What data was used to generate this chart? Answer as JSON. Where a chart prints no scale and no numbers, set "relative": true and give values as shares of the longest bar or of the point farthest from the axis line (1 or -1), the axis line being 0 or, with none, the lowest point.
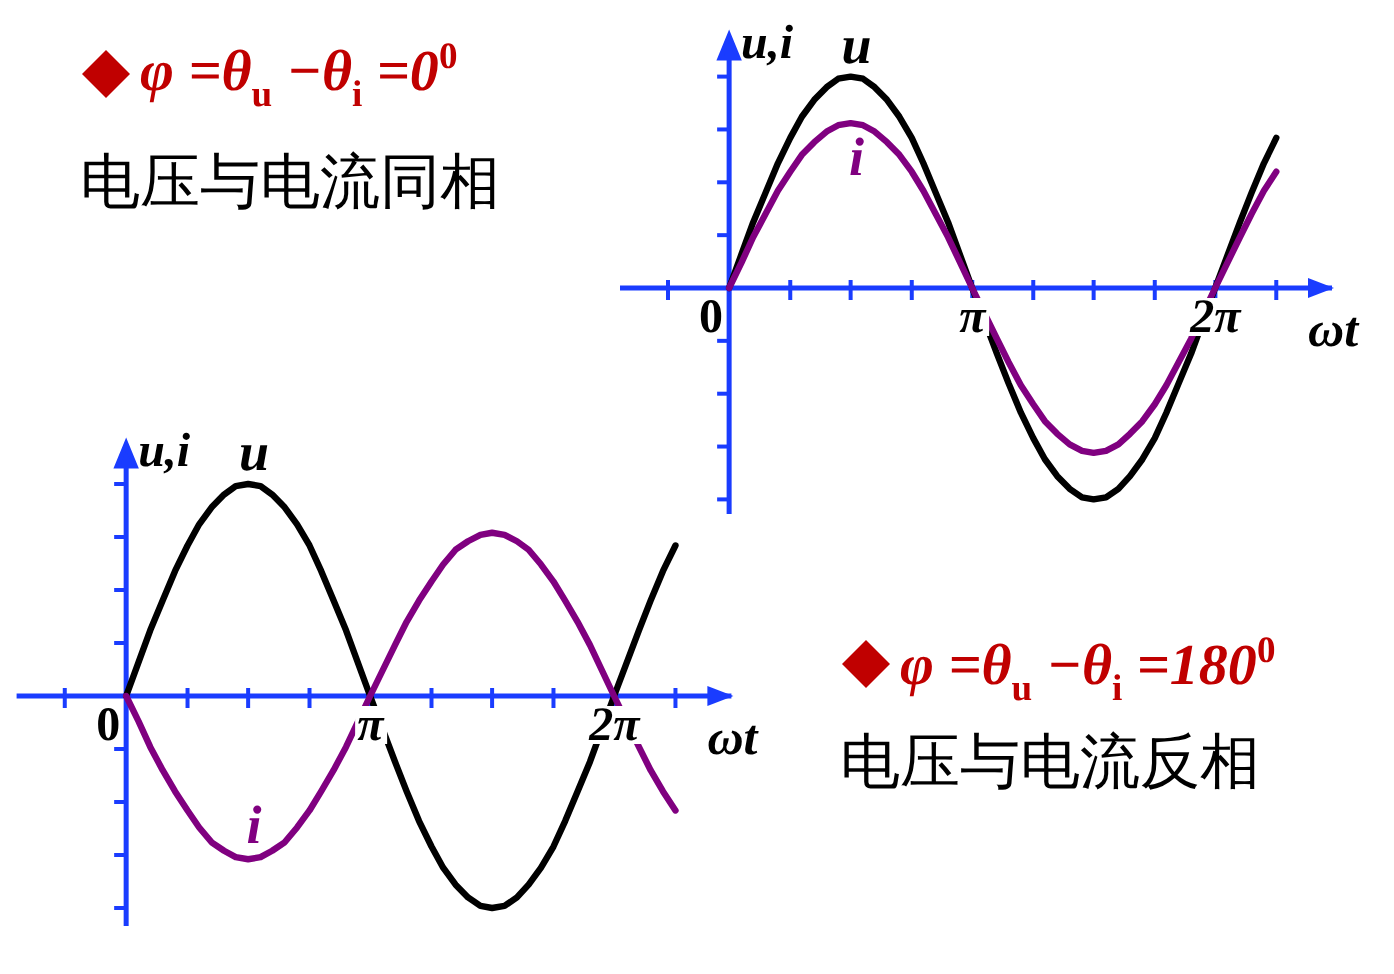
{
  "chart_data": [
    {
      "type": "other",
      "title": "φ =θ$_{u}$ −θ$_{i}$ =0$^{0}$",
      "subtitle": "电压与电流同相"
    },
    {
      "type": "line",
      "xlabel": "ωt",
      "ylabel": "u,i",
      "relative": true,
      "xlim": [
        -1.41,
        7.79
      ],
      "xticks": [
        {
          "value": -0.79,
          "label": null
        },
        0,
        {
          "value": 0.79,
          "label": null
        },
        {
          "value": 1.57,
          "label": null
        },
        {
          "value": 2.36,
          "label": null
        },
        {
          "value": 3.1416,
          "label": "π"
        },
        {
          "value": 3.93,
          "label": null
        },
        {
          "value": 4.71,
          "label": null
        },
        {
          "value": 5.5,
          "label": null
        },
        {
          "value": 6.2832,
          "label": "2π"
        },
        {
          "value": 7.07,
          "label": null
        }
      ],
      "ref_lines": [
        {
          "axis": "x",
          "value": 0,
          "color": "#1a3cff"
        }
      ],
      "x": [
        0,
        0.16,
        0.31,
        0.47,
        0.63,
        0.79,
        0.94,
        1.1,
        1.26,
        1.41,
        1.57,
        1.73,
        1.88,
        2.04,
        2.2,
        2.36,
        2.51,
        2.67,
        2.83,
        3.14,
        3.46,
        3.61,
        3.77,
        3.93,
        4.08,
        4.24,
        4.4,
        4.56,
        4.71,
        4.87,
        5.03,
        5.18,
        5.34,
        5.5,
        5.65,
        5.81,
        5.97,
        6.28,
        6.6,
        6.75,
        6.91,
        7.07
      ],
      "series": [
        {
          "name": "u",
          "color": "#000000",
          "values": [
            0,
            0.16,
            0.31,
            0.45,
            0.59,
            0.71,
            0.81,
            0.89,
            0.95,
            0.99,
            1,
            0.99,
            0.95,
            0.89,
            0.81,
            0.71,
            0.59,
            0.45,
            0.31,
            0,
            -0.31,
            -0.45,
            -0.59,
            -0.71,
            -0.81,
            -0.89,
            -0.95,
            -0.99,
            -1,
            -0.99,
            -0.95,
            -0.89,
            -0.81,
            -0.71,
            -0.59,
            -0.45,
            -0.31,
            0,
            0.31,
            0.45,
            0.59,
            0.71
          ]
        },
        {
          "name": "i",
          "color": "#800080",
          "values": [
            0,
            0.12,
            0.24,
            0.35,
            0.46,
            0.55,
            0.63,
            0.69,
            0.74,
            0.77,
            0.78,
            0.77,
            0.74,
            0.69,
            0.63,
            0.55,
            0.46,
            0.35,
            0.24,
            0,
            -0.24,
            -0.35,
            -0.46,
            -0.55,
            -0.63,
            -0.69,
            -0.74,
            -0.77,
            -0.78,
            -0.77,
            -0.74,
            -0.69,
            -0.63,
            -0.55,
            -0.46,
            -0.35,
            -0.24,
            0,
            0.24,
            0.35,
            0.46,
            0.55
          ]
        }
      ]
    },
    {
      "type": "line",
      "xlabel": "ωt",
      "ylabel": "u,i",
      "relative": true,
      "xlim": [
        -1.41,
        7.79
      ],
      "xticks": [
        {
          "value": -0.79,
          "label": null
        },
        0,
        {
          "value": 0.79,
          "label": null
        },
        {
          "value": 1.57,
          "label": null
        },
        {
          "value": 2.36,
          "label": null
        },
        {
          "value": 3.1416,
          "label": "π"
        },
        {
          "value": 3.93,
          "label": null
        },
        {
          "value": 4.71,
          "label": null
        },
        {
          "value": 5.5,
          "label": null
        },
        {
          "value": 6.2832,
          "label": "2π"
        },
        {
          "value": 7.07,
          "label": null
        }
      ],
      "ref_lines": [
        {
          "axis": "x",
          "value": 0,
          "color": "#1a3cff"
        }
      ],
      "x": [
        0,
        0.16,
        0.31,
        0.47,
        0.63,
        0.79,
        0.94,
        1.1,
        1.26,
        1.41,
        1.57,
        1.73,
        1.88,
        2.04,
        2.2,
        2.36,
        2.51,
        2.67,
        2.83,
        3.14,
        3.46,
        3.61,
        3.77,
        3.93,
        4.08,
        4.24,
        4.4,
        4.56,
        4.71,
        4.87,
        5.03,
        5.18,
        5.34,
        5.5,
        5.65,
        5.81,
        5.97,
        6.28,
        6.6,
        6.75,
        6.91,
        7.07
      ],
      "series": [
        {
          "name": "u",
          "color": "#000000",
          "values": [
            0,
            0.16,
            0.31,
            0.45,
            0.59,
            0.71,
            0.81,
            0.89,
            0.95,
            0.99,
            1,
            0.99,
            0.95,
            0.89,
            0.81,
            0.71,
            0.59,
            0.45,
            0.31,
            0,
            -0.31,
            -0.45,
            -0.59,
            -0.71,
            -0.81,
            -0.89,
            -0.95,
            -0.99,
            -1,
            -0.99,
            -0.95,
            -0.89,
            -0.81,
            -0.71,
            -0.59,
            -0.45,
            -0.31,
            0,
            0.31,
            0.45,
            0.59,
            0.71
          ]
        },
        {
          "name": "i",
          "color": "#800080",
          "values": [
            0,
            -0.12,
            -0.24,
            -0.35,
            -0.45,
            -0.54,
            -0.62,
            -0.69,
            -0.73,
            -0.76,
            -0.77,
            -0.76,
            -0.73,
            -0.69,
            -0.62,
            -0.54,
            -0.45,
            -0.35,
            -0.24,
            0,
            0.24,
            0.35,
            0.45,
            0.54,
            0.62,
            0.69,
            0.73,
            0.76,
            0.77,
            0.76,
            0.73,
            0.69,
            0.62,
            0.54,
            0.45,
            0.35,
            0.24,
            0,
            -0.24,
            -0.35,
            -0.45,
            -0.54
          ]
        }
      ]
    },
    {
      "type": "other",
      "title": "φ =θ$_{u}$ −θ$_{i}$ =180$^{0}$",
      "subtitle": "电压与电流反相"
    }
  ]
}
